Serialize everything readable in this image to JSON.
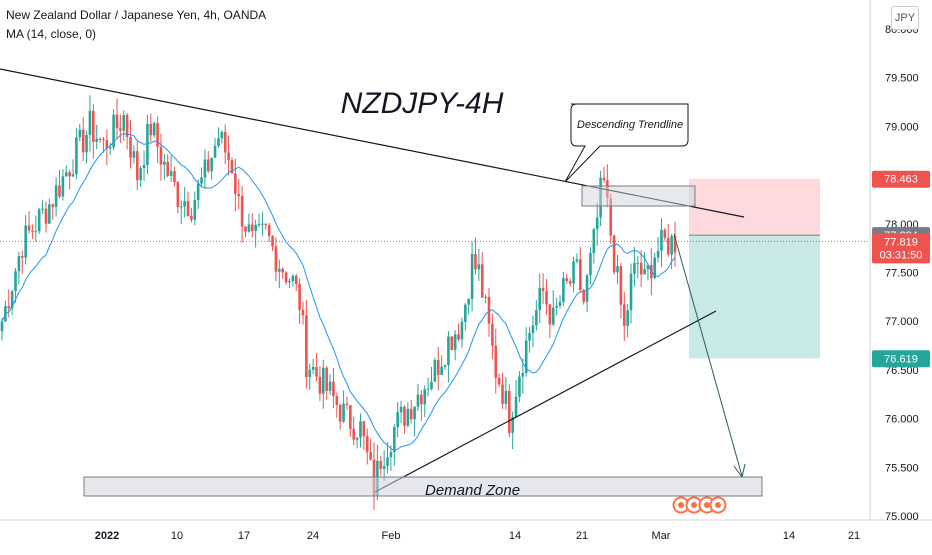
{
  "header": {
    "symbol_title": "New Zealand Dollar / Japanese Yen, 4h, OANDA",
    "indicator": "MA (14, close, 0)",
    "currency_badge": "JPY"
  },
  "colors": {
    "up": "#26a69a",
    "down": "#ef5350",
    "ma": "#2196f3",
    "target_zone": "#b2dfdb",
    "stop_zone": "#ffcdd2",
    "trendline": "#131722"
  },
  "chart_data": {
    "type": "candlestick",
    "title": "NZDJPY-4H",
    "ylim": [
      74.98,
      80.05
    ],
    "y_ticks": [
      "75.000",
      "75.500",
      "76.000",
      "76.500",
      "77.000",
      "77.500",
      "78.000",
      "78.500",
      "79.000",
      "79.500",
      "80.000"
    ],
    "x_ticks": [
      "2022",
      "10",
      "17",
      "24",
      "Feb",
      "14",
      "21",
      "Mar",
      "14",
      "21"
    ],
    "price_labels": [
      {
        "value": 78.463,
        "text": "78.463",
        "color": "#ef5350"
      },
      {
        "value": 77.884,
        "text": "77.884",
        "color": "#787b86"
      },
      {
        "value": 77.819,
        "text": "77.819",
        "color": "#ef5350",
        "sub": "03:31:50"
      },
      {
        "value": 76.619,
        "text": "76.619",
        "color": "#26a69a"
      }
    ],
    "price_path_anchors": [
      [
        0,
        77.0
      ],
      [
        6,
        77.8
      ],
      [
        14,
        78.2
      ],
      [
        20,
        78.6
      ],
      [
        26,
        79.0
      ],
      [
        30,
        78.8
      ],
      [
        36,
        79.1
      ],
      [
        40,
        78.5
      ],
      [
        44,
        79.0
      ],
      [
        48,
        78.6
      ],
      [
        52,
        78.3
      ],
      [
        56,
        78.2
      ],
      [
        60,
        78.5
      ],
      [
        64,
        78.9
      ],
      [
        68,
        78.6
      ],
      [
        70,
        78.2
      ],
      [
        74,
        77.8
      ],
      [
        78,
        77.9
      ],
      [
        82,
        77.6
      ],
      [
        86,
        77.4
      ],
      [
        88,
        77.2
      ],
      [
        90,
        76.6
      ],
      [
        94,
        76.4
      ],
      [
        98,
        76.2
      ],
      [
        102,
        76.0
      ],
      [
        106,
        75.9
      ],
      [
        108,
        75.6
      ],
      [
        110,
        75.3
      ],
      [
        112,
        75.6
      ],
      [
        116,
        75.9
      ],
      [
        120,
        76.1
      ],
      [
        124,
        76.3
      ],
      [
        128,
        76.5
      ],
      [
        132,
        76.8
      ],
      [
        136,
        77.0
      ],
      [
        139,
        77.6
      ],
      [
        141,
        77.5
      ],
      [
        144,
        76.9
      ],
      [
        146,
        76.5
      ],
      [
        148,
        76.3
      ],
      [
        150,
        76.0
      ],
      [
        153,
        76.5
      ],
      [
        156,
        76.9
      ],
      [
        160,
        77.3
      ],
      [
        163,
        77.0
      ],
      [
        166,
        77.3
      ],
      [
        170,
        77.5
      ],
      [
        172,
        77.2
      ],
      [
        175,
        77.8
      ],
      [
        177,
        78.3
      ],
      [
        178,
        78.4
      ],
      [
        180,
        77.9
      ],
      [
        182,
        77.4
      ],
      [
        184,
        76.9
      ],
      [
        186,
        77.4
      ],
      [
        188,
        77.6
      ],
      [
        190,
        77.4
      ],
      [
        193,
        77.7
      ],
      [
        196,
        77.8
      ],
      [
        199,
        77.82
      ]
    ],
    "annotations": {
      "descending_trendline_label": "Descending Trendline",
      "demand_zone_label": "Demand Zone"
    }
  }
}
